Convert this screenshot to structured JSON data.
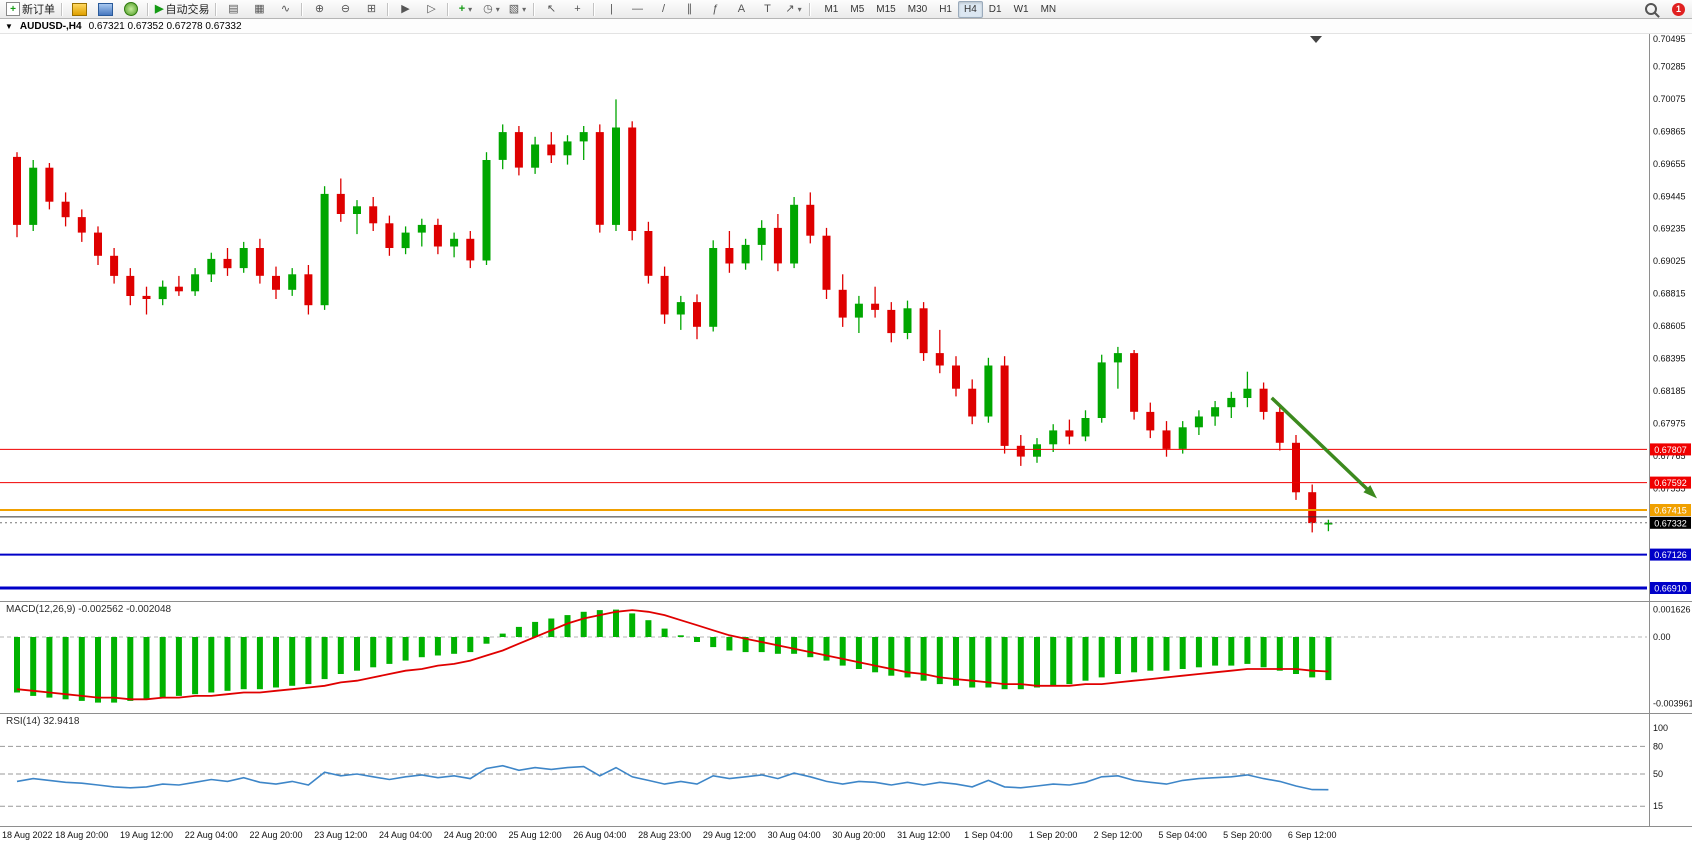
{
  "toolbar": {
    "new_order_label": "新订单",
    "autotrading_label": "自动交易",
    "glyphs": {
      "new_order": "+",
      "autotrading_play": "▶",
      "bar_chart": "▤",
      "candlestick_chart": "▦",
      "line_chart": "∿",
      "zoom_in": "⊕",
      "zoom_out": "⊖",
      "tile_windows": "⊞",
      "auto_scroll": "▶",
      "chart_shift": "▷",
      "indicators": "+",
      "periods": "◷",
      "templates": "▧",
      "cursor": "↖",
      "crosshair": "+",
      "vertical_line": "|",
      "horizontal_line": "—",
      "trendline": "/",
      "channel": "∥",
      "fibonacci": "ƒ",
      "text": "A",
      "text_label": "T",
      "arrows": "↗",
      "dropdown": "▾"
    },
    "timeframes": [
      "M1",
      "M5",
      "M15",
      "M30",
      "H1",
      "H4",
      "D1",
      "W1",
      "MN"
    ],
    "active_timeframe": "H4",
    "notification_count": "1"
  },
  "chart_header": {
    "collapse_glyph": "▼",
    "symbol_title": "AUDUSD-,H4",
    "ohlc_text": "0.67321 0.67352 0.67278 0.67332"
  },
  "chart_data": [
    {
      "type": "candlestick",
      "title": "AUDUSD-,H4",
      "timeframe": "H4",
      "ohlc_current": {
        "open": 0.67321,
        "high": 0.67352,
        "low": 0.67278,
        "close": 0.67332
      },
      "colors": {
        "up": "#00A600",
        "down": "#DE0000"
      },
      "y_axis_ticks": [
        "0.70495",
        "0.70285",
        "0.70075",
        "0.69865",
        "0.69655",
        "0.69445",
        "0.69235",
        "0.69025",
        "0.68815",
        "0.68605",
        "0.68395",
        "0.68185",
        "0.67975",
        "0.67765",
        "0.67555"
      ],
      "levels": [
        {
          "price": 0.67807,
          "color": "#F00000",
          "width": 1,
          "tagged": true
        },
        {
          "price": 0.67592,
          "color": "#F00000",
          "width": 1,
          "tagged": true
        },
        {
          "price": 0.67415,
          "color": "#F0A000",
          "width": 2,
          "tagged": true
        },
        {
          "price": 0.6737,
          "color": "#303030",
          "width": 1,
          "tagged": false
        },
        {
          "price": 0.67126,
          "color": "#0000C8",
          "width": 2,
          "tagged": true
        },
        {
          "price": 0.6691,
          "color": "#0000C8",
          "width": 3,
          "tagged": true
        }
      ],
      "current_price": {
        "price": 0.67332,
        "tag_color": "#000000"
      },
      "annotation_arrow": {
        "from": {
          "index": 77.5,
          "price": 0.6814
        },
        "to": {
          "index": 84,
          "price": 0.6749
        },
        "color": "#3C8A1E"
      },
      "candles": [
        [
          0.697,
          0.6973,
          0.6918,
          0.6926
        ],
        [
          0.6926,
          0.6968,
          0.6922,
          0.6963
        ],
        [
          0.6963,
          0.6966,
          0.6936,
          0.6941
        ],
        [
          0.6941,
          0.6947,
          0.6925,
          0.6931
        ],
        [
          0.6931,
          0.6936,
          0.6915,
          0.6921
        ],
        [
          0.6921,
          0.6925,
          0.69,
          0.6906
        ],
        [
          0.6906,
          0.6911,
          0.6888,
          0.6893
        ],
        [
          0.6893,
          0.6898,
          0.6874,
          0.688
        ],
        [
          0.688,
          0.6886,
          0.6868,
          0.6878
        ],
        [
          0.6878,
          0.689,
          0.6874,
          0.6886
        ],
        [
          0.6886,
          0.6893,
          0.688,
          0.6883
        ],
        [
          0.6883,
          0.6898,
          0.688,
          0.6894
        ],
        [
          0.6894,
          0.6908,
          0.6889,
          0.6904
        ],
        [
          0.6904,
          0.6911,
          0.6893,
          0.6898
        ],
        [
          0.6898,
          0.6915,
          0.6895,
          0.6911
        ],
        [
          0.6911,
          0.6917,
          0.6888,
          0.6893
        ],
        [
          0.6893,
          0.6899,
          0.6878,
          0.6884
        ],
        [
          0.6884,
          0.6898,
          0.688,
          0.6894
        ],
        [
          0.6894,
          0.69,
          0.6868,
          0.6874
        ],
        [
          0.6874,
          0.6951,
          0.6871,
          0.6946
        ],
        [
          0.6946,
          0.6956,
          0.6928,
          0.6933
        ],
        [
          0.6933,
          0.6942,
          0.692,
          0.6938
        ],
        [
          0.6938,
          0.6944,
          0.6922,
          0.6927
        ],
        [
          0.6927,
          0.6932,
          0.6906,
          0.6911
        ],
        [
          0.6911,
          0.6925,
          0.6907,
          0.6921
        ],
        [
          0.6921,
          0.693,
          0.6912,
          0.6926
        ],
        [
          0.6926,
          0.693,
          0.6907,
          0.6912
        ],
        [
          0.6912,
          0.6921,
          0.6905,
          0.6917
        ],
        [
          0.6917,
          0.6922,
          0.6898,
          0.6903
        ],
        [
          0.6903,
          0.6973,
          0.69,
          0.6968
        ],
        [
          0.6968,
          0.6991,
          0.6962,
          0.6986
        ],
        [
          0.6986,
          0.699,
          0.6958,
          0.6963
        ],
        [
          0.6963,
          0.6983,
          0.6959,
          0.6978
        ],
        [
          0.6978,
          0.6986,
          0.6966,
          0.6971
        ],
        [
          0.6971,
          0.6984,
          0.6965,
          0.698
        ],
        [
          0.698,
          0.699,
          0.6968,
          0.6986
        ],
        [
          0.6986,
          0.6991,
          0.6921,
          0.6926
        ],
        [
          0.6926,
          0.70072,
          0.6922,
          0.6989
        ],
        [
          0.6989,
          0.6993,
          0.6916,
          0.6922
        ],
        [
          0.6922,
          0.6928,
          0.6888,
          0.6893
        ],
        [
          0.6893,
          0.6899,
          0.6862,
          0.6868
        ],
        [
          0.6868,
          0.688,
          0.6858,
          0.6876
        ],
        [
          0.6876,
          0.6881,
          0.6852,
          0.686
        ],
        [
          0.686,
          0.6916,
          0.6857,
          0.6911
        ],
        [
          0.6911,
          0.6922,
          0.6895,
          0.6901
        ],
        [
          0.6901,
          0.6917,
          0.6897,
          0.6913
        ],
        [
          0.6913,
          0.6929,
          0.6903,
          0.6924
        ],
        [
          0.6924,
          0.6933,
          0.6896,
          0.6901
        ],
        [
          0.6901,
          0.6944,
          0.6898,
          0.6939
        ],
        [
          0.6939,
          0.6947,
          0.6914,
          0.6919
        ],
        [
          0.6919,
          0.6924,
          0.6878,
          0.6884
        ],
        [
          0.6884,
          0.6894,
          0.686,
          0.6866
        ],
        [
          0.6866,
          0.688,
          0.6856,
          0.6875
        ],
        [
          0.6875,
          0.6886,
          0.6866,
          0.6871
        ],
        [
          0.6871,
          0.6876,
          0.685,
          0.6856
        ],
        [
          0.6856,
          0.6877,
          0.6852,
          0.6872
        ],
        [
          0.6872,
          0.6876,
          0.6838,
          0.6843
        ],
        [
          0.6843,
          0.6858,
          0.683,
          0.6835
        ],
        [
          0.6835,
          0.6841,
          0.6815,
          0.682
        ],
        [
          0.682,
          0.6826,
          0.6797,
          0.6802
        ],
        [
          0.6802,
          0.684,
          0.6798,
          0.6835
        ],
        [
          0.6835,
          0.6841,
          0.6778,
          0.6783
        ],
        [
          0.6783,
          0.679,
          0.677,
          0.6776
        ],
        [
          0.6776,
          0.6788,
          0.6772,
          0.6784
        ],
        [
          0.6784,
          0.6797,
          0.6779,
          0.6793
        ],
        [
          0.6793,
          0.68,
          0.6784,
          0.6789
        ],
        [
          0.6789,
          0.6806,
          0.6786,
          0.6801
        ],
        [
          0.6801,
          0.6842,
          0.6798,
          0.6837
        ],
        [
          0.6837,
          0.6847,
          0.682,
          0.6843
        ],
        [
          0.6843,
          0.6845,
          0.68,
          0.6805
        ],
        [
          0.6805,
          0.6811,
          0.6788,
          0.6793
        ],
        [
          0.6793,
          0.6799,
          0.6776,
          0.6781
        ],
        [
          0.6781,
          0.6799,
          0.6778,
          0.6795
        ],
        [
          0.6795,
          0.6806,
          0.679,
          0.6802
        ],
        [
          0.6802,
          0.6812,
          0.6796,
          0.6808
        ],
        [
          0.6808,
          0.6818,
          0.6801,
          0.6814
        ],
        [
          0.6814,
          0.6831,
          0.6808,
          0.682
        ],
        [
          0.682,
          0.6824,
          0.68,
          0.6805
        ],
        [
          0.6805,
          0.6809,
          0.678,
          0.6785
        ],
        [
          0.6785,
          0.679,
          0.6748,
          0.6753
        ],
        [
          0.6753,
          0.6758,
          0.6727,
          0.6733
        ],
        [
          0.67321,
          0.67352,
          0.67278,
          0.67332
        ]
      ],
      "time_labels": [
        "18 Aug 2022",
        "18 Aug 20:00",
        "19 Aug 12:00",
        "22 Aug 04:00",
        "22 Aug 20:00",
        "23 Aug 12:00",
        "24 Aug 04:00",
        "24 Aug 20:00",
        "25 Aug 12:00",
        "26 Aug 04:00",
        "28 Aug 23:00",
        "29 Aug 12:00",
        "30 Aug 04:00",
        "30 Aug 20:00",
        "31 Aug 12:00",
        "1 Sep 04:00",
        "1 Sep 20:00",
        "2 Sep 12:00",
        "5 Sep 04:00",
        "5 Sep 20:00",
        "6 Sep 12:00"
      ]
    },
    {
      "type": "bar",
      "name": "MACD(12,26,9)",
      "display_label": "MACD(12,26,9) -0.002562 -0.002048",
      "values": {
        "macd": -0.002562,
        "signal": -0.002048
      },
      "colors": {
        "histogram": "#00B200",
        "signal": "#E00000"
      },
      "y_ticks": [
        "0.001626",
        "0.00",
        "-0.003961"
      ],
      "histogram": [
        -0.0033,
        -0.0035,
        -0.0036,
        -0.0037,
        -0.0038,
        -0.0039,
        -0.0039,
        -0.0038,
        -0.0037,
        -0.0036,
        -0.0035,
        -0.0034,
        -0.0033,
        -0.0032,
        -0.0031,
        -0.0031,
        -0.003,
        -0.0029,
        -0.0028,
        -0.0025,
        -0.0022,
        -0.002,
        -0.0018,
        -0.0016,
        -0.0014,
        -0.0012,
        -0.0011,
        -0.001,
        -0.0009,
        -0.0004,
        0.0002,
        0.0006,
        0.0009,
        0.0011,
        0.0013,
        0.0015,
        0.0016,
        0.00163,
        0.0014,
        0.001,
        0.0005,
        0.0001,
        -0.0003,
        -0.0006,
        -0.0008,
        -0.0009,
        -0.0009,
        -0.001,
        -0.001,
        -0.0012,
        -0.0014,
        -0.0017,
        -0.0019,
        -0.0021,
        -0.0023,
        -0.0024,
        -0.0026,
        -0.0028,
        -0.0029,
        -0.003,
        -0.003,
        -0.0031,
        -0.0031,
        -0.003,
        -0.0029,
        -0.0028,
        -0.0026,
        -0.0024,
        -0.0022,
        -0.0021,
        -0.002,
        -0.002,
        -0.0019,
        -0.0018,
        -0.0017,
        -0.0017,
        -0.0016,
        -0.0018,
        -0.002,
        -0.0022,
        -0.0024,
        -0.002562
      ],
      "signal": [
        -0.0031,
        -0.0032,
        -0.0033,
        -0.0034,
        -0.0035,
        -0.0036,
        -0.0036,
        -0.0037,
        -0.0037,
        -0.0036,
        -0.0036,
        -0.0035,
        -0.0035,
        -0.0034,
        -0.0033,
        -0.0033,
        -0.0032,
        -0.0031,
        -0.003,
        -0.0029,
        -0.0027,
        -0.0026,
        -0.0024,
        -0.0022,
        -0.002,
        -0.0019,
        -0.0017,
        -0.0016,
        -0.0014,
        -0.0011,
        -0.0008,
        -0.0004,
        0.0,
        0.0004,
        0.0008,
        0.0011,
        0.0013,
        0.0015,
        0.0016,
        0.0015,
        0.0013,
        0.001,
        0.0007,
        0.0004,
        0.0001,
        -0.0001,
        -0.0003,
        -0.0005,
        -0.0007,
        -0.0009,
        -0.0011,
        -0.0013,
        -0.0015,
        -0.0017,
        -0.0019,
        -0.0021,
        -0.0022,
        -0.0024,
        -0.0025,
        -0.0026,
        -0.0027,
        -0.0028,
        -0.0028,
        -0.0029,
        -0.0029,
        -0.0029,
        -0.0028,
        -0.0028,
        -0.0027,
        -0.0026,
        -0.0025,
        -0.0024,
        -0.0023,
        -0.0022,
        -0.0021,
        -0.002,
        -0.0019,
        -0.0019,
        -0.0019,
        -0.0019,
        -0.002,
        -0.002048
      ]
    },
    {
      "type": "line",
      "name": "RSI(14)",
      "display_label": "RSI(14) 32.9418",
      "current": 32.9418,
      "color": "#3E86C8",
      "levels": [
        80,
        50,
        15
      ],
      "y_ticks": [
        "100",
        "80",
        "50",
        "15"
      ],
      "values": [
        42,
        45,
        43,
        41,
        40,
        38,
        36,
        35,
        36,
        39,
        38,
        41,
        44,
        42,
        46,
        41,
        39,
        42,
        38,
        52,
        48,
        50,
        47,
        44,
        47,
        49,
        46,
        48,
        45,
        56,
        59,
        54,
        57,
        55,
        57,
        58,
        48,
        57,
        47,
        43,
        39,
        42,
        39,
        48,
        45,
        47,
        49,
        45,
        51,
        47,
        42,
        39,
        42,
        41,
        38,
        41,
        38,
        41,
        39,
        36,
        43,
        36,
        35,
        37,
        39,
        38,
        41,
        47,
        48,
        43,
        41,
        39,
        43,
        45,
        46,
        47,
        49,
        45,
        42,
        37,
        33,
        32.94
      ]
    }
  ]
}
